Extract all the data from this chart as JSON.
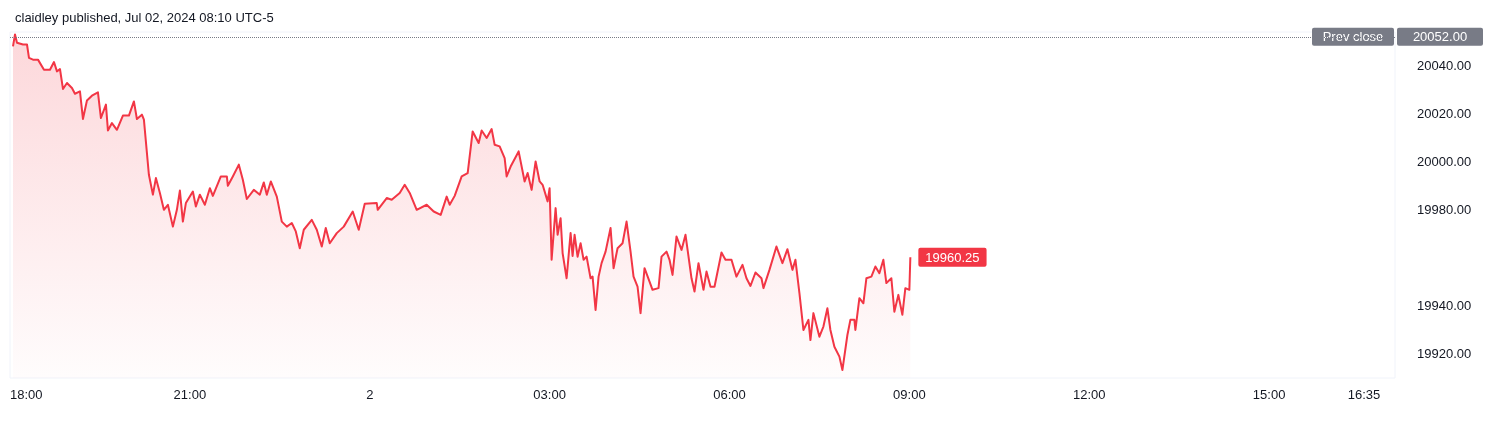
{
  "chart_data": {
    "type": "area",
    "title": "claidley published, Jul 02, 2024 08:10 UTC-5",
    "xlim": [
      "2024-07-01T18:00",
      "2024-07-02T17:06"
    ],
    "xticks": [
      {
        "value": "2024-07-01T18:00",
        "label": "18:00"
      },
      {
        "value": "2024-07-01T21:00",
        "label": "21:00"
      },
      {
        "value": "2024-07-02T00:00",
        "label": "2"
      },
      {
        "value": "2024-07-02T03:00",
        "label": "03:00"
      },
      {
        "value": "2024-07-02T06:00",
        "label": "06:00"
      },
      {
        "value": "2024-07-02T09:00",
        "label": "09:00"
      },
      {
        "value": "2024-07-02T12:00",
        "label": "12:00"
      },
      {
        "value": "2024-07-02T15:00",
        "label": "15:00"
      },
      {
        "value": "2024-07-02T16:35",
        "label": "16:35"
      }
    ],
    "ylim": [
      19910,
      20054
    ],
    "yticks": [
      {
        "value": 19920,
        "label": "19920.00"
      },
      {
        "value": 19940,
        "label": "19940.00"
      },
      {
        "value": 19980,
        "label": "19980.00"
      },
      {
        "value": 20000,
        "label": "20000.00"
      },
      {
        "value": 20020,
        "label": "20020.00"
      },
      {
        "value": 20040,
        "label": "20040.00"
      }
    ],
    "ref_lines": [
      {
        "axis": "y",
        "value": 20052,
        "label": "Prev close",
        "color": "#787b86",
        "line_style": "dotted"
      }
    ],
    "annotations": [
      "20052.00"
    ],
    "series": [
      {
        "color": "#f23645",
        "x": [
          "2024-07-01T18:03",
          "2024-07-01T18:05",
          "2024-07-01T18:07",
          "2024-07-01T18:13",
          "2024-07-01T18:17",
          "2024-07-01T18:19",
          "2024-07-01T18:23",
          "2024-07-01T18:28",
          "2024-07-01T18:34",
          "2024-07-01T18:40",
          "2024-07-01T18:44",
          "2024-07-01T18:47",
          "2024-07-01T18:50",
          "2024-07-01T18:53",
          "2024-07-01T18:57",
          "2024-07-01T19:02",
          "2024-07-01T19:05",
          "2024-07-01T19:10",
          "2024-07-01T19:13",
          "2024-07-01T19:17",
          "2024-07-01T19:22",
          "2024-07-01T19:28",
          "2024-07-01T19:31",
          "2024-07-01T19:36",
          "2024-07-01T19:38",
          "2024-07-01T19:42",
          "2024-07-01T19:47",
          "2024-07-01T19:53",
          "2024-07-01T19:59",
          "2024-07-01T20:04",
          "2024-07-01T20:07",
          "2024-07-01T20:12",
          "2024-07-01T20:14",
          "2024-07-01T20:19",
          "2024-07-01T20:23",
          "2024-07-01T20:26",
          "2024-07-01T20:30",
          "2024-07-01T20:34",
          "2024-07-01T20:38",
          "2024-07-01T20:43",
          "2024-07-01T20:47",
          "2024-07-01T20:50",
          "2024-07-01T20:53",
          "2024-07-01T20:56",
          "2024-07-01T21:03",
          "2024-07-01T21:06",
          "2024-07-01T21:10",
          "2024-07-01T21:15",
          "2024-07-01T21:20",
          "2024-07-01T21:23",
          "2024-07-01T21:31",
          "2024-07-01T21:37",
          "2024-07-01T21:38",
          "2024-07-01T21:43",
          "2024-07-01T21:49",
          "2024-07-01T21:53",
          "2024-07-01T21:57",
          "2024-07-01T22:04",
          "2024-07-01T22:10",
          "2024-07-01T22:14",
          "2024-07-01T22:17",
          "2024-07-01T22:21",
          "2024-07-01T22:27",
          "2024-07-01T22:32",
          "2024-07-01T22:37",
          "2024-07-01T22:42",
          "2024-07-01T22:46",
          "2024-07-01T22:50",
          "2024-07-01T22:54",
          "2024-07-01T23:02",
          "2024-07-01T23:07",
          "2024-07-01T23:12",
          "2024-07-01T23:16",
          "2024-07-01T23:20",
          "2024-07-01T23:27",
          "2024-07-01T23:34",
          "2024-07-01T23:43",
          "2024-07-01T23:49",
          "2024-07-01T23:55",
          "2024-07-02T00:07",
          "2024-07-02T00:08",
          "2024-07-02T00:17",
          "2024-07-02T00:22",
          "2024-07-02T00:30",
          "2024-07-02T00:35",
          "2024-07-02T00:40",
          "2024-07-02T00:47",
          "2024-07-02T00:57",
          "2024-07-02T01:04",
          "2024-07-02T01:11",
          "2024-07-02T01:17",
          "2024-07-02T01:20",
          "2024-07-02T01:25",
          "2024-07-02T01:32",
          "2024-07-02T01:38",
          "2024-07-02T01:43",
          "2024-07-02T01:49",
          "2024-07-02T01:52",
          "2024-07-02T01:57",
          "2024-07-02T02:02",
          "2024-07-02T02:05",
          "2024-07-02T02:10",
          "2024-07-02T02:15",
          "2024-07-02T02:17",
          "2024-07-02T02:21",
          "2024-07-02T02:29",
          "2024-07-02T02:35",
          "2024-07-02T02:38",
          "2024-07-02T02:42",
          "2024-07-02T02:46",
          "2024-07-02T02:50",
          "2024-07-02T02:53",
          "2024-07-02T02:58",
          "2024-07-02T03:00",
          "2024-07-02T03:02",
          "2024-07-02T03:06",
          "2024-07-02T03:08",
          "2024-07-02T03:11",
          "2024-07-02T03:13",
          "2024-07-02T03:17",
          "2024-07-02T03:21",
          "2024-07-02T03:23",
          "2024-07-02T03:25",
          "2024-07-02T03:28",
          "2024-07-02T03:31",
          "2024-07-02T03:34",
          "2024-07-02T03:37",
          "2024-07-02T03:41",
          "2024-07-02T03:43",
          "2024-07-02T03:46",
          "2024-07-02T03:49",
          "2024-07-02T03:52",
          "2024-07-02T03:56",
          "2024-07-02T04:01",
          "2024-07-02T04:04",
          "2024-07-02T04:08",
          "2024-07-02T04:13",
          "2024-07-02T04:17",
          "2024-07-02T04:21",
          "2024-07-02T04:24",
          "2024-07-02T04:28",
          "2024-07-02T04:31",
          "2024-07-02T04:35",
          "2024-07-02T04:40",
          "2024-07-02T04:43",
          "2024-07-02T04:49",
          "2024-07-02T04:52",
          "2024-07-02T04:57",
          "2024-07-02T05:00",
          "2024-07-02T05:03",
          "2024-07-02T05:07",
          "2024-07-02T05:12",
          "2024-07-02T05:16",
          "2024-07-02T05:22",
          "2024-07-02T05:25",
          "2024-07-02T05:29",
          "2024-07-02T05:34",
          "2024-07-02T05:37",
          "2024-07-02T05:41",
          "2024-07-02T05:45",
          "2024-07-02T05:52",
          "2024-07-02T05:56",
          "2024-07-02T06:02",
          "2024-07-02T06:07",
          "2024-07-02T06:13",
          "2024-07-02T06:17",
          "2024-07-02T06:21",
          "2024-07-02T06:26",
          "2024-07-02T06:32",
          "2024-07-02T06:34",
          "2024-07-02T06:40",
          "2024-07-02T06:47",
          "2024-07-02T06:53",
          "2024-07-02T06:58",
          "2024-07-02T07:03",
          "2024-07-02T07:06",
          "2024-07-02T07:10",
          "2024-07-02T07:14",
          "2024-07-02T07:19",
          "2024-07-02T07:21",
          "2024-07-02T07:24",
          "2024-07-02T07:30",
          "2024-07-02T07:34",
          "2024-07-02T07:38",
          "2024-07-02T07:41",
          "2024-07-02T07:45",
          "2024-07-02T07:50",
          "2024-07-02T07:53",
          "2024-07-02T07:58",
          "2024-07-02T08:01",
          "2024-07-02T08:05",
          "2024-07-02T08:06",
          "2024-07-02T08:10",
          "2024-07-02T08:14",
          "2024-07-02T08:17",
          "2024-07-02T08:22",
          "2024-07-02T08:26",
          "2024-07-02T08:30",
          "2024-07-02T08:34",
          "2024-07-02T08:37",
          "2024-07-02T08:42",
          "2024-07-02T08:45",
          "2024-07-02T08:49",
          "2024-07-02T08:53",
          "2024-07-02T08:56",
          "2024-07-02T09:00",
          "2024-07-02T09:01"
        ],
        "values": [
          20048,
          20053,
          20049.5,
          20048.8,
          20048.8,
          20043.2,
          20042.5,
          20042.5,
          20038.3,
          20038.3,
          20041.5,
          20037.6,
          20038.6,
          20030.3,
          20032.8,
          20030.7,
          20028.3,
          20029.3,
          20017.8,
          20025.5,
          20027.5,
          20028.9,
          20018.2,
          20023.8,
          20013,
          20016.1,
          20013.3,
          20019.2,
          20019.2,
          20025.1,
          20017.8,
          20019.6,
          20017.5,
          19994.6,
          19986.3,
          19993.2,
          19987,
          19980,
          19982.1,
          19973,
          19980,
          19988,
          19975.1,
          19982.8,
          19987.6,
          19981.4,
          19986.3,
          19982.1,
          19989,
          19985.8,
          19993.9,
          19993.9,
          19990,
          19993.9,
          19998.8,
          19992.5,
          19984.5,
          19988.3,
          19986.3,
          19991.4,
          19986.3,
          19991.8,
          19985.5,
          19975.1,
          19973,
          19974.5,
          19971,
          19964,
          19971.7,
          19975.8,
          19971.7,
          19964.7,
          19972.4,
          19966.1,
          19970.3,
          19973,
          19979.3,
          19971.7,
          19982.5,
          19982.8,
          19980,
          19984.9,
          19984.2,
          19987,
          19990.4,
          19987,
          19980,
          19982.1,
          19979.3,
          19977.9,
          19985.5,
          19982.1,
          19985.8,
          19993.9,
          19995.3,
          20012.6,
          20007.8,
          20013,
          20009.9,
          20013.6,
          20007.1,
          20006.4,
          20001.5,
          19993.9,
          19998,
          20004.3,
          19991.8,
          19995.3,
          19988.3,
          20000.1,
          19991.8,
          19990.4,
          19983.5,
          19989,
          19959.2,
          19980.7,
          19969.6,
          19976.5,
          19962,
          19951.5,
          19970.3,
          19960.8,
          19969.6,
          19960.5,
          19966.1,
          19959.2,
          19960.5,
          19951.5,
          19952.2,
          19938.3,
          19952.2,
          19957.8,
          19962.6,
          19972.4,
          19955.7,
          19964,
          19966.1,
          19975.1,
          19962.6,
          19952.2,
          19948,
          19937,
          19955.7,
          19950.1,
          19946.7,
          19947.4,
          19960.5,
          19962.6,
          19959.2,
          19952.9,
          19968.9,
          19963.3,
          19969.6,
          19951.5,
          19946,
          19957.8,
          19946.7,
          19954.3,
          19948,
          19948,
          19962.2,
          19959.2,
          19959.2,
          19952.2,
          19957.1,
          19951.5,
          19948.3,
          19953.9,
          19951.5,
          19947.4,
          19955,
          19964.7,
          19957.8,
          19963.6,
          19955,
          19959.2,
          19945.3,
          19930,
          19934.2,
          19925.8,
          19937,
          19927.2,
          19931.4,
          19939,
          19930,
          19923,
          19918.9,
          19913.3,
          19927.9,
          19934.2,
          19934.2,
          19930,
          19943.2,
          19941.1,
          19951.5,
          19952.2,
          19956.4,
          19953.6,
          19959.2,
          19949.5,
          19951.5,
          19937.6,
          19944.6,
          19936.3,
          19947.4,
          19946.7,
          19960.25
        ],
        "value_labels": [
          null,
          null,
          null,
          null,
          null,
          null,
          null,
          null,
          null,
          null,
          null,
          null,
          null,
          null,
          null,
          null,
          null,
          null,
          null,
          null,
          null,
          null,
          null,
          null,
          null,
          null,
          null,
          null,
          null,
          null,
          null,
          null,
          null,
          null,
          null,
          null,
          null,
          null,
          null,
          null,
          null,
          null,
          null,
          null,
          null,
          null,
          null,
          null,
          null,
          null,
          null,
          null,
          null,
          null,
          null,
          null,
          null,
          null,
          null,
          null,
          null,
          null,
          null,
          null,
          null,
          null,
          null,
          null,
          null,
          null,
          null,
          null,
          null,
          null,
          null,
          null,
          null,
          null,
          null,
          null,
          null,
          null,
          null,
          null,
          null,
          null,
          null,
          null,
          null,
          null,
          null,
          null,
          null,
          null,
          null,
          null,
          null,
          null,
          null,
          null,
          null,
          null,
          null,
          null,
          null,
          null,
          null,
          null,
          null,
          null,
          null,
          null,
          null,
          null,
          null,
          null,
          null,
          null,
          null,
          null,
          null,
          null,
          null,
          null,
          null,
          null,
          null,
          null,
          null,
          null,
          null,
          null,
          null,
          null,
          null,
          null,
          null,
          null,
          null,
          null,
          null,
          null,
          null,
          null,
          null,
          null,
          null,
          null,
          null,
          null,
          null,
          null,
          null,
          null,
          null,
          null,
          null,
          null,
          null,
          null,
          null,
          null,
          null,
          null,
          null,
          null,
          null,
          null,
          null,
          null,
          null,
          null,
          null,
          null,
          null,
          null,
          null,
          null,
          null,
          null,
          null,
          null,
          null,
          null,
          null,
          null,
          null,
          null,
          null,
          null,
          null,
          null,
          null,
          null,
          null,
          null,
          null,
          null,
          null,
          null,
          null,
          null,
          null,
          null,
          null,
          null,
          "19960.25"
        ]
      }
    ]
  }
}
